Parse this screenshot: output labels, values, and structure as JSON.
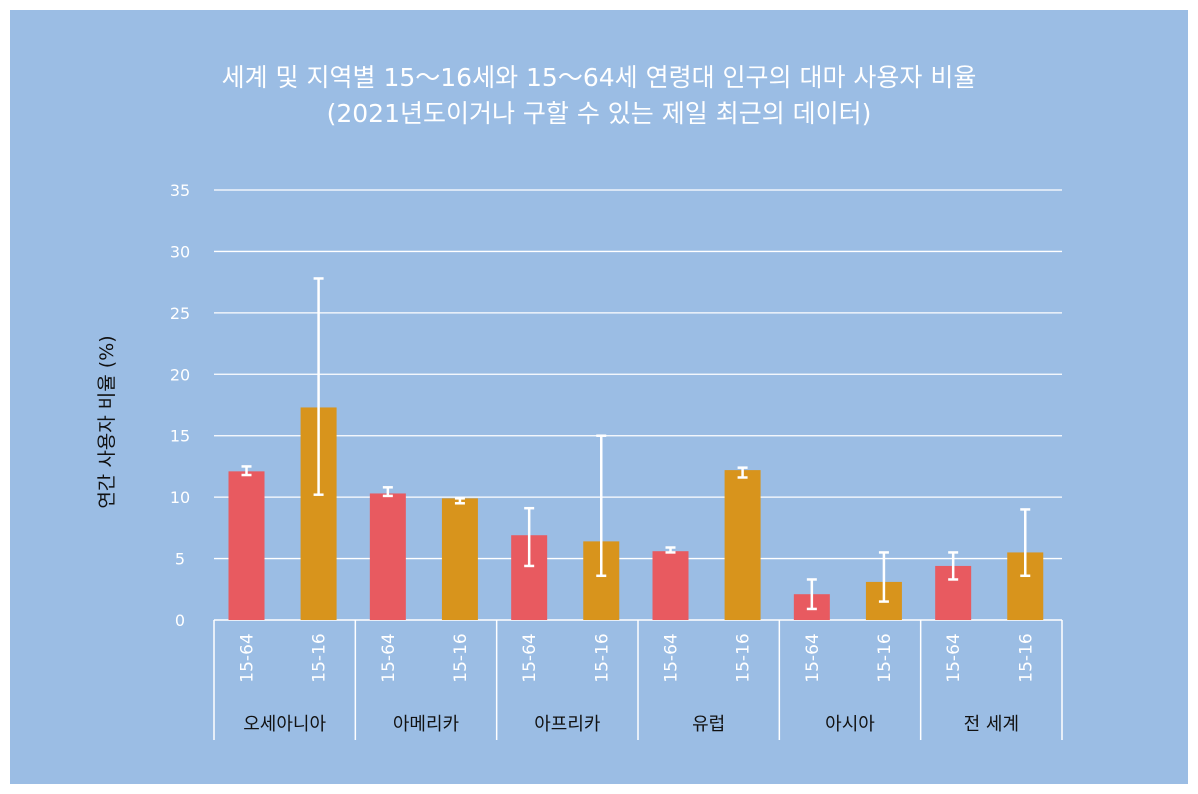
{
  "chart_data": {
    "type": "bar",
    "title": "세계 및 지역별 15～16세와 15～64세 연령대 인구의 대마 사용자 비율",
    "subtitle": "(2021년도이거나 구할 수 있는 제일 최근의 데이터)",
    "ylabel": "연간 사용자 비율 (%)",
    "ylim": [
      0,
      35
    ],
    "yticks": [
      0,
      5,
      10,
      15,
      20,
      25,
      30,
      35
    ],
    "grid": true,
    "colors": {
      "15-64": "#e85a60",
      "15-16": "#d8941c"
    },
    "groups": [
      {
        "region": "오세아니아",
        "bars": [
          {
            "age": "15-64",
            "value": 12.1,
            "err": [
              11.8,
              12.5
            ]
          },
          {
            "age": "15-16",
            "value": 17.3,
            "err": [
              10.2,
              27.8
            ]
          }
        ]
      },
      {
        "region": "아메리카",
        "bars": [
          {
            "age": "15-64",
            "value": 10.3,
            "err": [
              10.1,
              10.8
            ]
          },
          {
            "age": "15-16",
            "value": 9.9,
            "err": [
              9.5,
              9.9
            ]
          }
        ]
      },
      {
        "region": "아프리카",
        "bars": [
          {
            "age": "15-64",
            "value": 6.9,
            "err": [
              4.4,
              9.1
            ]
          },
          {
            "age": "15-16",
            "value": 6.4,
            "err": [
              3.6,
              15.0
            ]
          }
        ]
      },
      {
        "region": "유럽",
        "bars": [
          {
            "age": "15-64",
            "value": 5.6,
            "err": [
              5.5,
              5.9
            ]
          },
          {
            "age": "15-16",
            "value": 12.2,
            "err": [
              11.6,
              12.4
            ]
          }
        ]
      },
      {
        "region": "아시아",
        "bars": [
          {
            "age": "15-64",
            "value": 2.1,
            "err": [
              0.9,
              3.3
            ]
          },
          {
            "age": "15-16",
            "value": 3.1,
            "err": [
              1.5,
              5.5
            ]
          }
        ]
      },
      {
        "region": "전 세계",
        "bars": [
          {
            "age": "15-64",
            "value": 4.4,
            "err": [
              3.3,
              5.5
            ]
          },
          {
            "age": "15-16",
            "value": 5.5,
            "err": [
              3.6,
              9.0
            ]
          }
        ]
      }
    ]
  }
}
